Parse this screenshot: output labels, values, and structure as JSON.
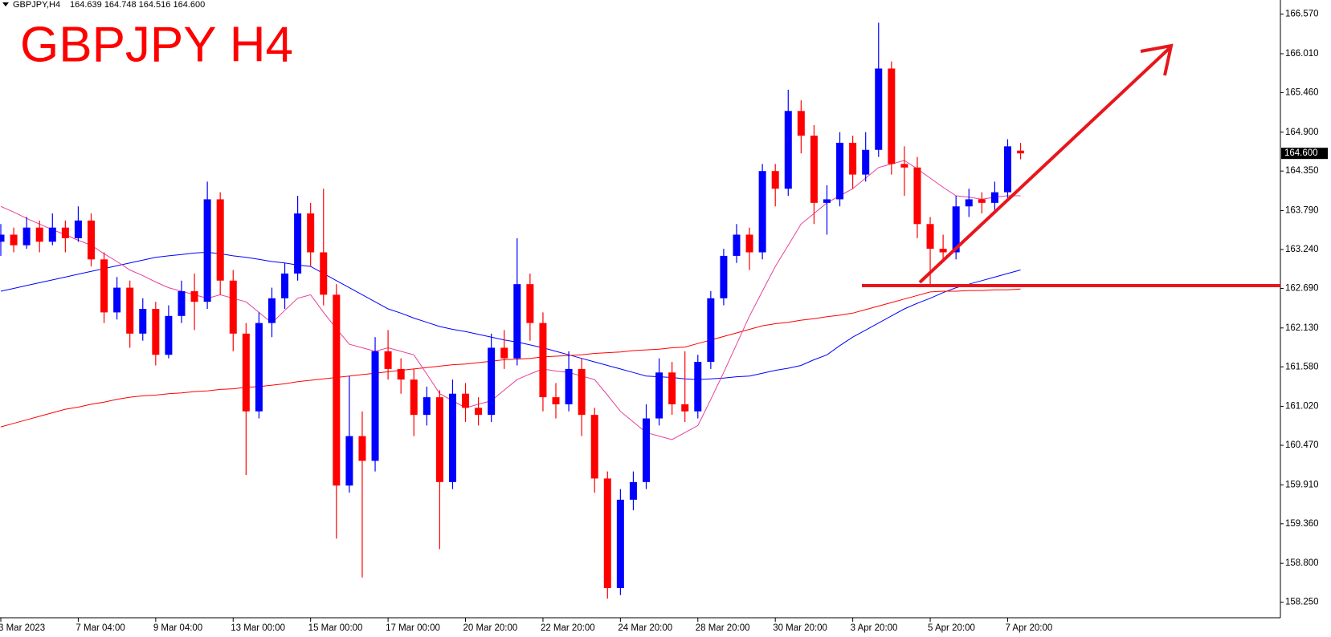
{
  "header": {
    "symbol": "GBPJPY,H4",
    "quote": "164.639 164.748 164.516 164.600"
  },
  "chart_data": {
    "type": "candlestick",
    "title": "GBPJPY H4",
    "up_color": "#0000ff",
    "down_color": "#ff0000",
    "categories": [
      "3 Mar 2023",
      null,
      null,
      null,
      null,
      null,
      "7 Mar 04:00",
      null,
      null,
      null,
      null,
      null,
      "9 Mar 04:00",
      null,
      null,
      null,
      null,
      null,
      "13 Mar 00:00",
      null,
      null,
      null,
      null,
      null,
      "15 Mar 00:00",
      null,
      null,
      null,
      null,
      null,
      "17 Mar 00:00",
      null,
      null,
      null,
      null,
      null,
      "20 Mar 20:00",
      null,
      null,
      null,
      null,
      null,
      "22 Mar 20:00",
      null,
      null,
      null,
      null,
      null,
      "24 Mar 20:00",
      null,
      null,
      null,
      null,
      null,
      "28 Mar 20:00",
      null,
      null,
      null,
      null,
      null,
      "30 Mar 20:00",
      null,
      null,
      null,
      null,
      null,
      "3 Apr 20:00",
      null,
      null,
      null,
      null,
      null,
      "5 Apr 20:00",
      null,
      null,
      null,
      null,
      null,
      "7 Apr 20:00",
      null
    ],
    "open": [
      163.35,
      163.45,
      163.3,
      163.55,
      163.35,
      163.55,
      163.4,
      163.65,
      163.1,
      162.35,
      162.7,
      162.05,
      162.4,
      161.75,
      162.3,
      162.65,
      162.5,
      163.95,
      162.8,
      162.05,
      160.95,
      162.2,
      162.55,
      162.9,
      163.75,
      163.2,
      162.6,
      159.9,
      160.6,
      160.25,
      161.8,
      161.55,
      161.4,
      160.9,
      161.15,
      159.95,
      161.2,
      161.0,
      160.9,
      161.85,
      161.7,
      162.75,
      162.2,
      161.15,
      161.05,
      161.55,
      160.9,
      160.0,
      158.45,
      159.7,
      159.95,
      160.85,
      161.5,
      161.05,
      160.95,
      161.65,
      162.55,
      163.15,
      163.45,
      163.2,
      164.35,
      164.1,
      165.2,
      164.85,
      163.9,
      163.95,
      164.75,
      164.3,
      164.65,
      165.8,
      164.45,
      164.4,
      163.6,
      163.25,
      163.2,
      163.85,
      163.95,
      163.9,
      164.05,
      164.639
    ],
    "high": [
      163.6,
      163.55,
      163.7,
      163.65,
      163.75,
      163.65,
      163.85,
      163.75,
      163.2,
      162.85,
      162.8,
      162.55,
      162.5,
      162.45,
      162.8,
      162.9,
      164.2,
      164.05,
      162.95,
      162.2,
      162.35,
      162.7,
      163.05,
      164.0,
      163.9,
      164.1,
      162.75,
      161.45,
      160.95,
      162.0,
      162.1,
      161.7,
      161.55,
      161.3,
      161.25,
      161.4,
      161.35,
      161.15,
      162.05,
      162.1,
      163.4,
      162.9,
      162.35,
      161.35,
      161.8,
      161.7,
      161.0,
      160.1,
      159.85,
      160.1,
      161.05,
      161.7,
      161.65,
      161.8,
      161.75,
      162.65,
      163.25,
      163.6,
      163.55,
      164.45,
      164.45,
      165.5,
      165.35,
      165.0,
      164.15,
      164.9,
      164.85,
      164.9,
      166.45,
      165.9,
      164.7,
      164.55,
      163.7,
      163.45,
      164.0,
      164.1,
      164.05,
      164.2,
      164.8,
      164.748
    ],
    "low": [
      163.15,
      163.2,
      163.25,
      163.2,
      163.3,
      163.2,
      163.35,
      163.0,
      162.2,
      162.25,
      161.85,
      161.95,
      161.6,
      161.7,
      162.2,
      162.1,
      162.4,
      162.6,
      161.8,
      160.05,
      160.85,
      162.0,
      162.4,
      162.8,
      163.0,
      162.45,
      159.15,
      159.8,
      158.6,
      160.1,
      161.4,
      161.2,
      160.6,
      160.75,
      159.0,
      159.85,
      160.8,
      160.75,
      160.8,
      161.55,
      161.6,
      161.95,
      160.95,
      160.85,
      160.95,
      160.6,
      159.8,
      158.3,
      158.35,
      159.55,
      159.85,
      160.75,
      160.9,
      160.8,
      160.85,
      161.55,
      162.45,
      163.05,
      162.95,
      163.1,
      163.85,
      164.0,
      164.6,
      163.6,
      163.45,
      163.85,
      164.1,
      164.2,
      164.55,
      164.3,
      164.0,
      163.4,
      162.75,
      163.1,
      163.1,
      163.7,
      163.75,
      163.75,
      163.95,
      164.516
    ],
    "close": [
      163.45,
      163.3,
      163.55,
      163.35,
      163.55,
      163.4,
      163.65,
      163.1,
      162.35,
      162.7,
      162.05,
      162.4,
      161.75,
      162.3,
      162.65,
      162.5,
      163.95,
      162.8,
      162.05,
      160.95,
      162.2,
      162.55,
      162.9,
      163.75,
      163.2,
      162.6,
      159.9,
      160.6,
      160.25,
      161.8,
      161.55,
      161.4,
      160.9,
      161.15,
      159.95,
      161.2,
      161.0,
      160.9,
      161.85,
      161.7,
      162.75,
      162.2,
      161.15,
      161.05,
      161.55,
      160.9,
      160.0,
      158.45,
      159.7,
      159.95,
      160.85,
      161.5,
      161.05,
      160.95,
      161.65,
      162.55,
      163.15,
      163.45,
      163.2,
      164.35,
      164.1,
      165.2,
      164.85,
      163.9,
      163.95,
      164.75,
      164.3,
      164.65,
      165.8,
      164.45,
      164.4,
      163.6,
      163.25,
      163.2,
      163.85,
      163.95,
      163.9,
      164.05,
      164.7,
      164.6
    ],
    "series": [
      {
        "color": "#0000ff",
        "values": [
          162.65,
          162.69,
          162.73,
          162.77,
          162.81,
          162.85,
          162.89,
          162.93,
          162.97,
          163.01,
          163.05,
          163.09,
          163.13,
          163.15,
          163.17,
          163.19,
          163.2,
          163.18,
          163.15,
          163.13,
          163.1,
          163.07,
          163.05,
          163.02,
          163.0,
          162.9,
          162.8,
          162.7,
          162.6,
          162.5,
          162.4,
          162.34,
          162.27,
          162.21,
          162.15,
          162.11,
          162.08,
          162.04,
          162.0,
          161.96,
          161.93,
          161.89,
          161.85,
          161.8,
          161.75,
          161.7,
          161.65,
          161.6,
          161.55,
          161.5,
          161.45,
          161.44,
          161.43,
          161.41,
          161.4,
          161.41,
          161.42,
          161.44,
          161.45,
          161.49,
          161.53,
          161.56,
          161.6,
          161.68,
          161.75,
          161.88,
          162.0,
          162.1,
          162.2,
          162.3,
          162.4,
          162.48,
          162.55,
          162.63,
          162.7,
          162.75,
          162.8,
          162.85,
          162.9,
          162.95
        ]
      },
      {
        "color": "#ff0000",
        "values": [
          160.73,
          160.78,
          160.83,
          160.88,
          160.93,
          160.98,
          161.01,
          161.05,
          161.08,
          161.12,
          161.15,
          161.17,
          161.18,
          161.2,
          161.21,
          161.23,
          161.24,
          161.26,
          161.27,
          161.29,
          161.3,
          161.32,
          161.34,
          161.37,
          161.39,
          161.41,
          161.43,
          161.45,
          161.47,
          161.49,
          161.51,
          161.53,
          161.55,
          161.57,
          161.59,
          161.61,
          161.62,
          161.64,
          161.66,
          161.68,
          161.69,
          161.7,
          161.72,
          161.73,
          161.74,
          161.75,
          161.77,
          161.78,
          161.79,
          161.81,
          161.82,
          161.83,
          161.85,
          161.86,
          161.91,
          161.96,
          162.01,
          162.06,
          162.11,
          162.16,
          162.19,
          162.21,
          162.24,
          162.26,
          162.29,
          162.31,
          162.34,
          162.39,
          162.44,
          162.49,
          162.54,
          162.59,
          162.64,
          162.65,
          162.65,
          162.66,
          162.66,
          162.67,
          162.67,
          162.68
        ]
      },
      {
        "color": "#e8409a",
        "values": [
          163.85,
          163.77,
          163.68,
          163.6,
          163.52,
          163.45,
          163.37,
          163.3,
          163.18,
          163.07,
          162.95,
          162.87,
          162.78,
          162.7,
          162.65,
          162.6,
          162.55,
          162.6,
          162.55,
          162.5,
          162.35,
          162.2,
          162.38,
          162.55,
          162.6,
          162.35,
          162.12,
          161.9,
          161.85,
          161.8,
          161.85,
          161.8,
          161.75,
          161.48,
          161.2,
          161.1,
          161.0,
          161.05,
          161.1,
          161.25,
          161.4,
          161.48,
          161.55,
          161.52,
          161.5,
          161.45,
          161.4,
          161.18,
          160.95,
          160.8,
          160.65,
          160.6,
          160.55,
          160.65,
          160.75,
          161.12,
          161.5,
          161.9,
          162.3,
          162.65,
          163.0,
          163.3,
          163.6,
          163.75,
          163.9,
          164.0,
          164.1,
          164.25,
          164.4,
          164.45,
          164.5,
          164.38,
          164.25,
          164.12,
          164.0,
          163.98,
          163.95,
          163.98,
          164.0,
          164.0
        ]
      }
    ],
    "price_tag": {
      "value": 164.6,
      "label": "164.600"
    },
    "ylim": [
      158.03,
      166.77
    ],
    "yticks": [
      {
        "value": 166.57,
        "label": "166.570"
      },
      {
        "value": 166.01,
        "label": "166.010"
      },
      {
        "value": 165.46,
        "label": "165.460"
      },
      {
        "value": 164.9,
        "label": "164.900"
      },
      {
        "value": 164.35,
        "label": "164.350"
      },
      {
        "value": 163.79,
        "label": "163.790"
      },
      {
        "value": 163.24,
        "label": "163.240"
      },
      {
        "value": 162.69,
        "label": "162.690"
      },
      {
        "value": 162.13,
        "label": "162.130"
      },
      {
        "value": 161.58,
        "label": "161.580"
      },
      {
        "value": 161.02,
        "label": "161.020"
      },
      {
        "value": 160.47,
        "label": "160.470"
      },
      {
        "value": 159.91,
        "label": "159.910"
      },
      {
        "value": 159.36,
        "label": "159.360"
      },
      {
        "value": 158.8,
        "label": "158.800"
      },
      {
        "value": 158.25,
        "label": "158.250"
      }
    ],
    "grid": false
  }
}
